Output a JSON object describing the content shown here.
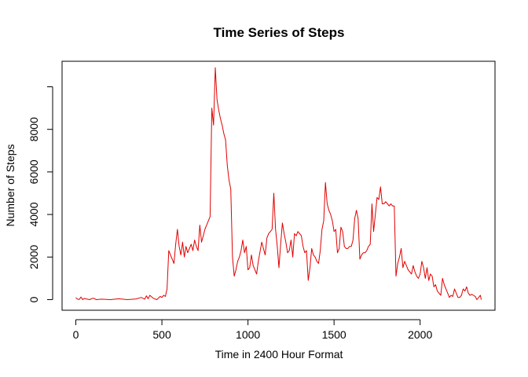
{
  "chart_data": {
    "type": "line",
    "title": "Time Series of Steps",
    "xlabel": "Time in 2400 Hour Format",
    "ylabel": "Number of Steps",
    "xlim": [
      -80,
      2435
    ],
    "ylim": [
      -500,
      11200
    ],
    "x_ticks": [
      0,
      500,
      1000,
      1500,
      2000
    ],
    "y_ticks": [
      0,
      2000,
      4000,
      6000,
      8000,
      10000
    ],
    "y_tick_labels": [
      "0",
      "2000",
      "4000",
      "6000",
      "8000",
      ""
    ],
    "grid": false,
    "legend": "none",
    "series": [
      {
        "color": "#e00000",
        "x": [
          0,
          10,
          20,
          30,
          40,
          50,
          60,
          80,
          100,
          120,
          150,
          200,
          250,
          300,
          350,
          380,
          400,
          410,
          420,
          430,
          450,
          470,
          490,
          500,
          510,
          520,
          530,
          540,
          550,
          560,
          570,
          580,
          590,
          600,
          610,
          620,
          630,
          640,
          650,
          660,
          670,
          680,
          690,
          700,
          710,
          720,
          730,
          740,
          750,
          760,
          770,
          780,
          790,
          800,
          810,
          820,
          830,
          840,
          850,
          860,
          870,
          880,
          890,
          900,
          910,
          920,
          930,
          940,
          950,
          960,
          970,
          980,
          990,
          1000,
          1010,
          1020,
          1030,
          1040,
          1050,
          1060,
          1080,
          1100,
          1110,
          1120,
          1130,
          1140,
          1150,
          1160,
          1170,
          1180,
          1190,
          1200,
          1210,
          1220,
          1230,
          1240,
          1250,
          1260,
          1270,
          1280,
          1290,
          1300,
          1310,
          1320,
          1330,
          1340,
          1350,
          1360,
          1370,
          1380,
          1390,
          1400,
          1410,
          1420,
          1430,
          1440,
          1450,
          1460,
          1470,
          1480,
          1490,
          1500,
          1510,
          1520,
          1530,
          1540,
          1550,
          1560,
          1570,
          1580,
          1590,
          1600,
          1610,
          1620,
          1630,
          1640,
          1650,
          1660,
          1670,
          1680,
          1690,
          1700,
          1710,
          1720,
          1730,
          1740,
          1750,
          1760,
          1770,
          1780,
          1790,
          1800,
          1810,
          1820,
          1830,
          1840,
          1850,
          1860,
          1870,
          1880,
          1890,
          1900,
          1910,
          1920,
          1930,
          1940,
          1950,
          1960,
          1970,
          1980,
          1990,
          2000,
          2010,
          2020,
          2030,
          2040,
          2050,
          2060,
          2070,
          2080,
          2090,
          2100,
          2110,
          2120,
          2130,
          2140,
          2150,
          2160,
          2170,
          2180,
          2190,
          2200,
          2210,
          2220,
          2230,
          2240,
          2250,
          2260,
          2270,
          2280,
          2290,
          2300,
          2310,
          2320,
          2330,
          2340,
          2350,
          2355
        ],
        "y": [
          90,
          20,
          10,
          120,
          0,
          60,
          30,
          0,
          70,
          0,
          20,
          0,
          40,
          0,
          30,
          100,
          20,
          180,
          40,
          200,
          60,
          0,
          150,
          100,
          200,
          150,
          500,
          2300,
          2100,
          1900,
          1700,
          2600,
          3300,
          2500,
          2100,
          2700,
          2000,
          2500,
          2200,
          2400,
          2600,
          2300,
          2800,
          2500,
          2300,
          3500,
          2700,
          3000,
          3300,
          3500,
          3700,
          3900,
          9000,
          8200,
          10900,
          9400,
          8900,
          8500,
          8200,
          7800,
          7500,
          6300,
          5600,
          5200,
          2000,
          1100,
          1400,
          1800,
          2000,
          2300,
          2800,
          2200,
          2500,
          1400,
          1500,
          2100,
          1600,
          1400,
          1200,
          1800,
          2700,
          2100,
          2900,
          3100,
          3200,
          3300,
          5000,
          3300,
          2500,
          1500,
          2600,
          3600,
          3100,
          2700,
          2200,
          2300,
          2800,
          2000,
          3100,
          3000,
          3200,
          3100,
          3000,
          2500,
          2200,
          2300,
          900,
          1500,
          2400,
          2100,
          2000,
          1800,
          1700,
          2300,
          3300,
          3700,
          5500,
          4500,
          4200,
          4000,
          3700,
          3200,
          3300,
          2200,
          2400,
          3400,
          3200,
          2500,
          2400,
          2400,
          2500,
          2500,
          2800,
          3800,
          4200,
          3800,
          1900,
          2100,
          2200,
          2200,
          2300,
          2500,
          2600,
          4500,
          3200,
          4000,
          4800,
          4700,
          5300,
          4500,
          4500,
          4600,
          4500,
          4400,
          4500,
          4400,
          4400,
          1100,
          1700,
          2000,
          2400,
          1500,
          1800,
          1600,
          1400,
          1300,
          1200,
          1600,
          1300,
          1100,
          1000,
          1200,
          1800,
          1500,
          1000,
          1500,
          900,
          1200,
          1100,
          600,
          700,
          400,
          300,
          200,
          1000,
          700,
          500,
          300,
          100,
          200,
          150,
          500,
          300,
          100,
          100,
          200,
          500,
          400,
          600,
          300,
          200,
          250,
          200,
          150,
          0,
          100,
          200,
          0
        ],
        "x_full": [
          0,
          10,
          20,
          30,
          40,
          50,
          100,
          130,
          200,
          240,
          320,
          400,
          410,
          420,
          430,
          440,
          450,
          460,
          470,
          480,
          490,
          500,
          505,
          510,
          520,
          530,
          540,
          550,
          560,
          570,
          580,
          590,
          600,
          605,
          610,
          615,
          620,
          625,
          630,
          635,
          640,
          645,
          650,
          655,
          700,
          705,
          710,
          715,
          720,
          725,
          730,
          735,
          740,
          745,
          750,
          755,
          800,
          805,
          810,
          815,
          820,
          825,
          830,
          835,
          840,
          845,
          850,
          855,
          900,
          905,
          910,
          915,
          920,
          925,
          930,
          935,
          940,
          945,
          950,
          955,
          1000,
          1005,
          1010,
          1015,
          1020,
          1025,
          1030,
          1035,
          1040,
          1045,
          1050,
          1055,
          1100,
          1105,
          1110,
          1115,
          1120,
          1125,
          1130,
          1135,
          1140,
          1145,
          1150,
          1155,
          1200,
          1205,
          1210,
          1215,
          1220,
          1225,
          1230,
          1235,
          1240,
          1245,
          1250,
          1255,
          1300,
          1305,
          1310,
          1315,
          1320,
          1325,
          1330,
          1335,
          1340,
          1345,
          1350,
          1355,
          1400,
          1405,
          1410,
          1415,
          1420,
          1425,
          1430,
          1435,
          1440,
          1445,
          1450,
          1455,
          1500,
          1505,
          1510,
          1515,
          1520,
          1525,
          1530,
          1535,
          1540,
          1545,
          1550,
          1555,
          1600,
          1605,
          1610,
          1615,
          1620,
          1625,
          1630,
          1635,
          1640,
          1645,
          1650,
          1655,
          1700,
          1705,
          1710,
          1715,
          1720,
          1725,
          1730,
          1735,
          1740,
          1745,
          1750,
          1755,
          1800,
          1805,
          1810,
          1815,
          1820,
          1825,
          1830,
          1835,
          1840,
          1845,
          1850,
          1855,
          1900,
          1905,
          1910,
          1915,
          1920,
          1925,
          1930,
          1935,
          1940,
          1945,
          1950,
          1955,
          2000,
          2005,
          2010,
          2015,
          2020,
          2025,
          2030,
          2035,
          2040,
          2045,
          2050,
          2055,
          2100,
          2105,
          2110,
          2115,
          2120,
          2125,
          2130,
          2135,
          2140,
          2145,
          2150,
          2155,
          2200,
          2205,
          2210,
          2215,
          2220,
          2225,
          2230,
          2235,
          2240,
          2245,
          2250,
          2255,
          2300,
          2305,
          2310,
          2315,
          2320,
          2325,
          2330,
          2335,
          2340,
          2345,
          2350,
          2355
        ]
      }
    ]
  }
}
